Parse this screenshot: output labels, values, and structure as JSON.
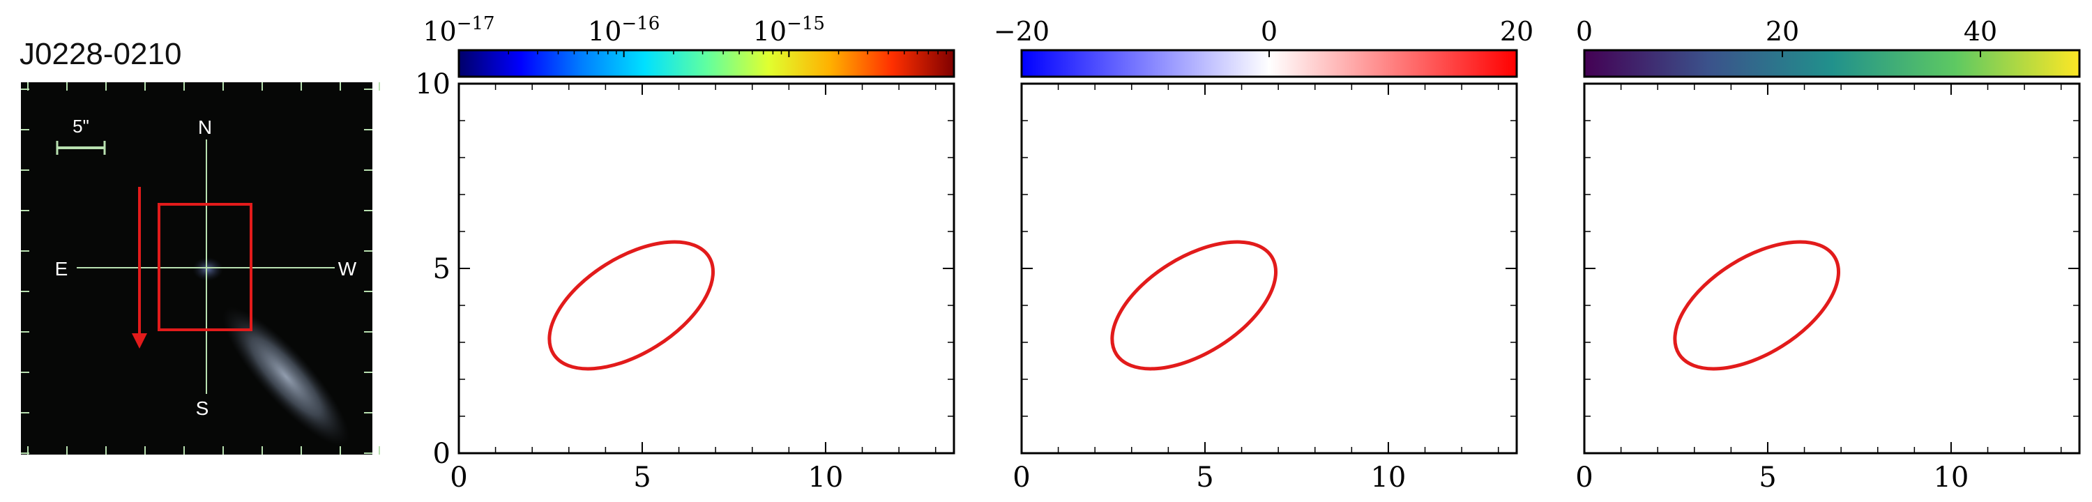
{
  "object_name": "J0228-0210",
  "image_panel": {
    "scale_label": "5\"",
    "compass": {
      "north": "N",
      "south": "S",
      "east": "E",
      "west": "W"
    },
    "colors": {
      "box": "#e21b1b",
      "arrow": "#e21b1b",
      "grid": "#b8e0b0"
    }
  },
  "chart_data": [
    {
      "type": "heatmap",
      "panel": "flux",
      "xlim": [
        0,
        13.5
      ],
      "ylim": [
        0,
        10
      ],
      "x_ticks": [
        "0",
        "5",
        "10"
      ],
      "y_ticks": [
        "0",
        "5",
        "10"
      ],
      "colorbar": {
        "scale": "log",
        "range": [
          1e-17,
          1e-14
        ],
        "tick_labels": [
          {
            "base": "10",
            "exp": "−17"
          },
          {
            "base": "10",
            "exp": "−16"
          },
          {
            "base": "10",
            "exp": "−15"
          }
        ],
        "colormap": [
          "#00006a",
          "#0000ff",
          "#0080ff",
          "#00e0ff",
          "#60ffa0",
          "#e0ff30",
          "#ffb000",
          "#ff3000",
          "#800000"
        ]
      },
      "ellipse": {
        "cx": 4.7,
        "cy": 4.0,
        "rx": 2.5,
        "ry": 1.3,
        "angle_deg": 32,
        "color": "#e21b1b"
      }
    },
    {
      "type": "heatmap",
      "panel": "velocity",
      "xlim": [
        0,
        13.5
      ],
      "ylim": [
        0,
        10
      ],
      "x_ticks": [
        "0",
        "5",
        "10"
      ],
      "y_ticks": [],
      "colorbar": {
        "scale": "linear",
        "range": [
          -20,
          20
        ],
        "tick_labels": [
          {
            "base": "−20",
            "exp": ""
          },
          {
            "base": "0",
            "exp": ""
          },
          {
            "base": "20",
            "exp": ""
          }
        ],
        "colormap": [
          "#0000ff",
          "#8080ff",
          "#ffffff",
          "#ff8080",
          "#ff0000"
        ]
      },
      "ellipse": {
        "cx": 4.7,
        "cy": 4.0,
        "rx": 2.5,
        "ry": 1.3,
        "angle_deg": 32,
        "color": "#e21b1b"
      }
    },
    {
      "type": "heatmap",
      "panel": "dispersion",
      "xlim": [
        0,
        13.5
      ],
      "ylim": [
        0,
        10
      ],
      "x_ticks": [
        "0",
        "5",
        "10"
      ],
      "y_ticks": [],
      "colorbar": {
        "scale": "linear",
        "range": [
          0,
          50
        ],
        "tick_labels": [
          {
            "base": "0",
            "exp": ""
          },
          {
            "base": "20",
            "exp": ""
          },
          {
            "base": "40",
            "exp": ""
          }
        ],
        "colormap": [
          "#440154",
          "#3b528b",
          "#21918c",
          "#5ec962",
          "#fde725"
        ]
      },
      "ellipse": {
        "cx": 4.7,
        "cy": 4.0,
        "rx": 2.5,
        "ry": 1.3,
        "angle_deg": 32,
        "color": "#e21b1b"
      }
    }
  ]
}
